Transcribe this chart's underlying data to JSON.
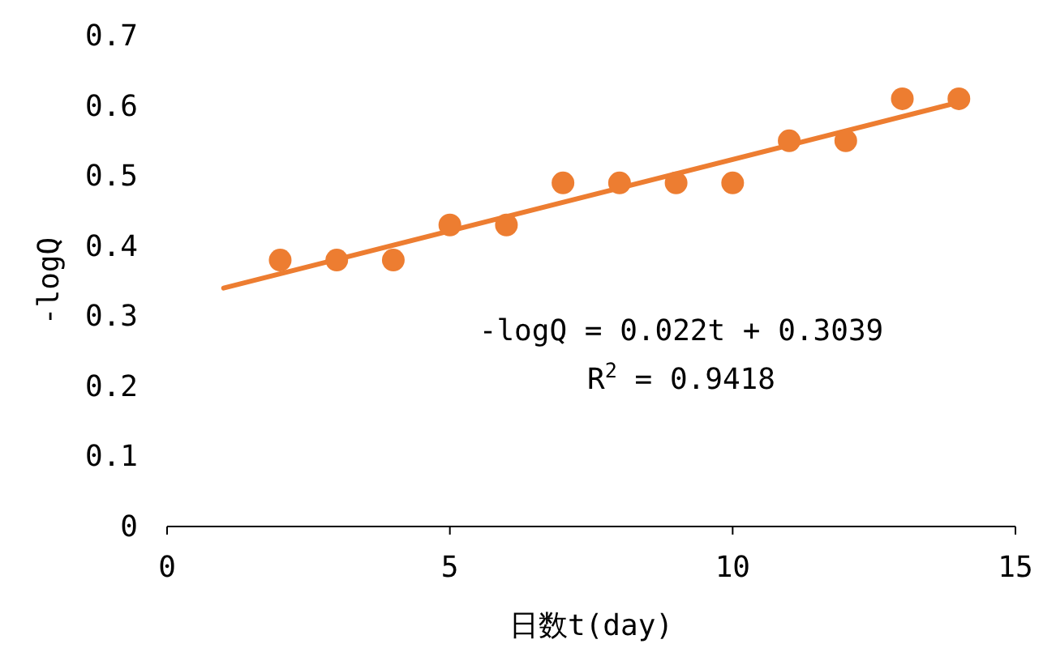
{
  "chart_data": {
    "type": "scatter",
    "xlabel": "日数t(day)",
    "ylabel": "-logQ",
    "xlim": [
      0,
      15
    ],
    "xticks": [
      0,
      5,
      10,
      15
    ],
    "ylim": [
      0,
      0.7
    ],
    "yticks": [
      0,
      0.1,
      0.2,
      0.3,
      0.4,
      0.5,
      0.6,
      0.7
    ],
    "grid": false,
    "series": [
      {
        "marker": "circle",
        "color": "#ed7d31",
        "x": [
          2,
          3,
          4,
          5,
          6,
          7,
          8,
          9,
          10,
          11,
          12,
          13,
          14
        ],
        "values": [
          0.38,
          0.38,
          0.38,
          0.43,
          0.43,
          0.49,
          0.49,
          0.49,
          0.49,
          0.55,
          0.55,
          0.61,
          0.61
        ]
      },
      {
        "type": "line",
        "marker": "none",
        "color": "#ed7d31",
        "x": [
          1,
          14
        ],
        "values": [
          0.34,
          0.605
        ],
        "line_style": "solid"
      }
    ],
    "annotations": [
      "-logQ = 0.022t + 0.3039",
      "R$^{2}$ = 0.9418"
    ]
  }
}
